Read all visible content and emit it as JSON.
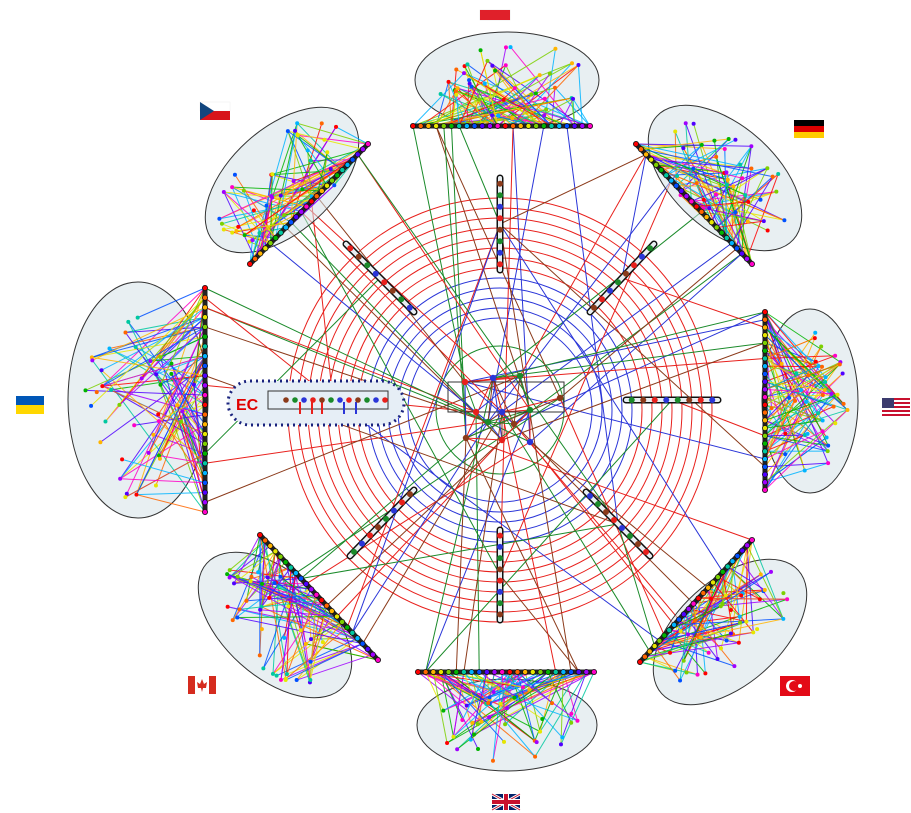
{
  "diagram": {
    "center_label": "EC",
    "colors": {
      "ring_red": "#e8201c",
      "ring_blue": "#2a35d8",
      "ring_green": "#1a8a2a",
      "ring_brown": "#8b3a1a",
      "hub_fill": "#d6e2e8",
      "ec_fill": "#e6eef6",
      "ec_border": "#1a237e"
    },
    "palette": [
      "#ff0000",
      "#ff6600",
      "#ffb400",
      "#e6e600",
      "#7cd000",
      "#00b400",
      "#00c8a0",
      "#00b4ff",
      "#0050ff",
      "#5000ff",
      "#a000ff",
      "#ff00c8"
    ],
    "clusters": [
      {
        "id": "poland",
        "flag": "poland-flag"
      },
      {
        "id": "germany",
        "flag": "germany-flag"
      },
      {
        "id": "usa",
        "flag": "usa-flag"
      },
      {
        "id": "turkey",
        "flag": "turkey-flag"
      },
      {
        "id": "uk",
        "flag": "uk-flag"
      },
      {
        "id": "canada",
        "flag": "canada-flag"
      },
      {
        "id": "ukraine",
        "flag": "ukraine-flag"
      },
      {
        "id": "czech",
        "flag": "czech-flag"
      }
    ]
  }
}
